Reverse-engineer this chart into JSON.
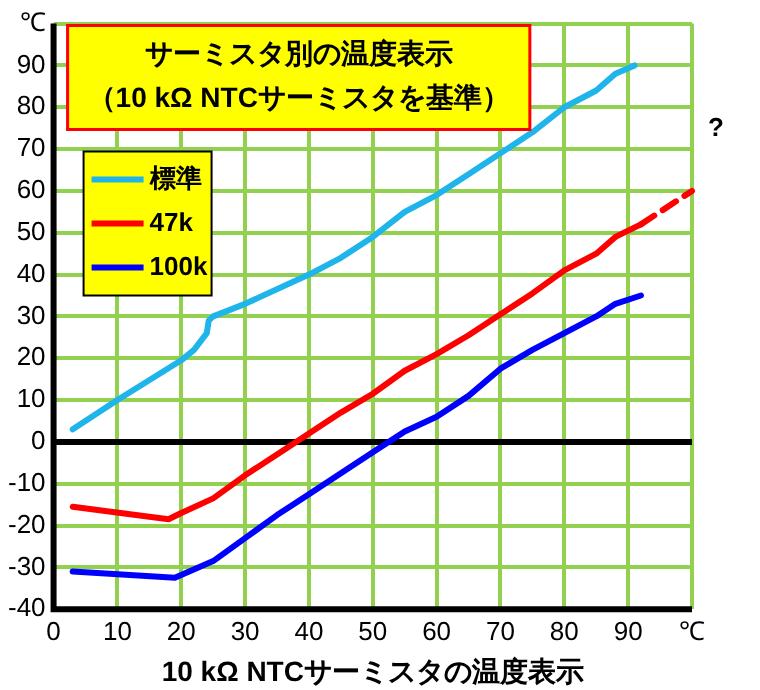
{
  "chart_data": {
    "type": "line",
    "title": "サーミスタ別の温度表示",
    "subtitle": "（10 kΩ NTCサーミスタを基準）",
    "xlabel": "10 kΩ NTCサーミスタの温度表示",
    "xlim": [
      0,
      100
    ],
    "xticks": [
      0,
      10,
      20,
      30,
      40,
      50,
      60,
      70,
      80,
      90,
      {
        "value": 100,
        "label": "℃"
      }
    ],
    "ylim": [
      -40,
      100
    ],
    "yticks": [
      -40,
      -30,
      -20,
      -10,
      0,
      10,
      20,
      30,
      40,
      50,
      60,
      70,
      80,
      90,
      {
        "value": 100,
        "label": "℃"
      }
    ],
    "grid": true,
    "legend": "top left",
    "marker": "none",
    "line_style": "solid",
    "ref_lines": [
      {
        "axis": "y",
        "value": 0,
        "color": "#000000"
      }
    ],
    "annotations": [
      "?"
    ],
    "series": [
      {
        "name": "標準",
        "color": "#1fb4ea",
        "x": [
          3,
          10,
          20,
          22,
          24,
          24.3,
          25,
          30,
          40,
          45,
          50,
          55,
          60,
          65,
          70,
          75,
          80,
          85,
          88,
          91
        ],
        "values": [
          3,
          10,
          19.5,
          22,
          26,
          29,
          30,
          33,
          40,
          44,
          49,
          55,
          59,
          64,
          69,
          74,
          80,
          84,
          88,
          90
        ]
      },
      {
        "name": "47k",
        "color": "#ff0000",
        "x": [
          3,
          18,
          20,
          25,
          30,
          35,
          40,
          45,
          50,
          55,
          60,
          65,
          70,
          75,
          80,
          85,
          88,
          92
        ],
        "values": [
          -15.5,
          -18.5,
          -17,
          -13.5,
          -8,
          -3,
          2,
          7,
          11.5,
          17,
          21,
          25.5,
          30.5,
          35.5,
          41,
          45,
          49,
          52
        ]
      },
      {
        "name": "100k",
        "color": "#0000ff",
        "x": [
          3,
          19,
          25,
          30,
          35,
          40,
          45,
          50,
          55,
          60,
          65,
          70,
          75,
          80,
          85,
          88,
          92
        ],
        "values": [
          -31,
          -32.5,
          -28.5,
          -23,
          -17.5,
          -12.5,
          -7.5,
          -2.5,
          2.5,
          6,
          11,
          17.5,
          22,
          26,
          30,
          33,
          35
        ]
      },
      {
        "type": "line",
        "color": "#ff0000",
        "line_style": "dashed",
        "x": [
          92,
          100
        ],
        "values": [
          52,
          60
        ]
      }
    ]
  }
}
